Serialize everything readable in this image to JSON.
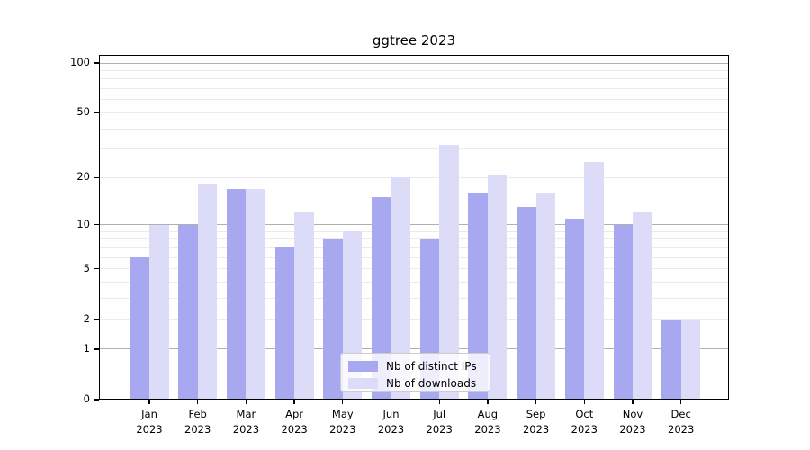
{
  "title": "ggtree 2023",
  "chart_data": {
    "type": "bar",
    "title": "ggtree 2023",
    "xlabel": "",
    "ylabel": "",
    "scale": "log1p",
    "grid": "on",
    "legend_position": "inside-bottom-center",
    "year_label": "2023",
    "categories": [
      "Jan",
      "Feb",
      "Mar",
      "Apr",
      "May",
      "Jun",
      "Jul",
      "Aug",
      "Sep",
      "Oct",
      "Nov",
      "Dec"
    ],
    "series": [
      {
        "name": "Nb of distinct IPs",
        "color": "#a8a8f0",
        "values": [
          6,
          10,
          17,
          7,
          8,
          15,
          8,
          16,
          13,
          11,
          10,
          2
        ]
      },
      {
        "name": "Nb of downloads",
        "color": "#dcdcf9",
        "values": [
          10,
          18,
          17,
          12,
          9,
          20,
          32,
          21,
          16,
          25,
          12,
          2
        ]
      }
    ],
    "yticks": [
      0,
      1,
      2,
      5,
      10,
      20,
      50,
      100
    ],
    "ylim": [
      0,
      110
    ],
    "gridlines_major": [
      1,
      10,
      100
    ],
    "gridlines_minor": [
      2,
      3,
      4,
      5,
      6,
      7,
      8,
      9,
      20,
      30,
      40,
      50,
      60,
      70,
      80,
      90
    ],
    "colors": {
      "major_grid": "#b0b0b0",
      "minor_grid": "#ebebeb",
      "spine": "#000000",
      "legend_border": "#cccccc",
      "text": "#000000"
    }
  }
}
